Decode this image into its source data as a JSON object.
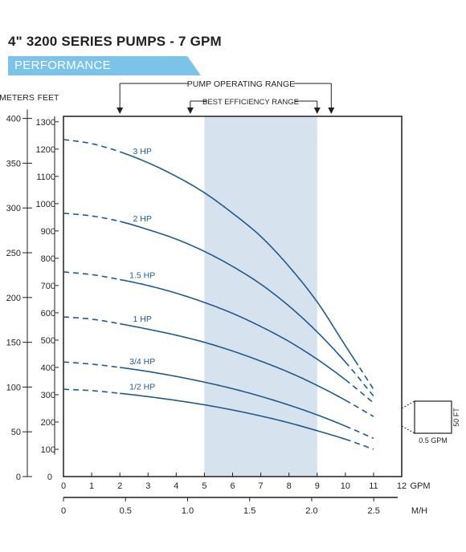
{
  "header": {
    "title": "4\" 3200 SERIES PUMPS - 7 GPM",
    "banner": "PERFORMANCE"
  },
  "chart_data": {
    "type": "line",
    "colors": {
      "curve": "#1f5a8f",
      "efficiency_band": "#d6e3ee",
      "banner": "#7cc3ea",
      "text": "#231f20"
    },
    "axes": {
      "meters_label": "METERS",
      "feet_label": "FEET",
      "gpm_label": "GPM",
      "mh_label": "M/H",
      "gpm_ticks": [
        0,
        1,
        2,
        3,
        4,
        5,
        6,
        7,
        8,
        9,
        10,
        11,
        12
      ],
      "mh_ticks": [
        "0",
        "0.5",
        "1.0",
        "1.5",
        "2.0",
        "2.5"
      ],
      "feet_ticks": [
        100,
        200,
        300,
        400,
        500,
        600,
        700,
        800,
        900,
        1000,
        1100,
        1200,
        1300
      ],
      "meters_ticks": [
        0,
        50,
        100,
        150,
        200,
        250,
        300,
        350,
        400
      ],
      "feet_zero": "0",
      "xlim_gpm": [
        0,
        12
      ],
      "ylim_feet": [
        0,
        1320
      ]
    },
    "ranges": {
      "pump_operating_label": "PUMP OPERATING RANGE",
      "pump_operating_gpm": [
        2,
        9.5
      ],
      "best_efficiency_label": "BEST EFFICIENCY RANGE",
      "best_efficiency_gpm": [
        4.5,
        9
      ],
      "shaded_band_gpm": [
        5,
        9
      ]
    },
    "scale_box": {
      "height_label": "50 FT",
      "width_label": "0.5 GPM"
    },
    "series": [
      {
        "name": "3 HP",
        "x": [
          0,
          1,
          2,
          3,
          4,
          5,
          6,
          7,
          8,
          9,
          10,
          11
        ],
        "y": [
          1235,
          1220,
          1190,
          1150,
          1100,
          1040,
          965,
          880,
          770,
          640,
          480,
          320
        ],
        "dashed_until": 2,
        "solid_until": 10.5
      },
      {
        "name": "2 HP",
        "x": [
          0,
          1,
          2,
          3,
          4,
          5,
          6,
          7,
          8,
          9,
          10,
          11
        ],
        "y": [
          965,
          955,
          935,
          905,
          870,
          825,
          770,
          705,
          625,
          530,
          420,
          295
        ],
        "dashed_until": 2,
        "solid_until": 10
      },
      {
        "name": "1.5 HP",
        "x": [
          0,
          1,
          2,
          3,
          4,
          5,
          6,
          7,
          8,
          9,
          10,
          11
        ],
        "y": [
          750,
          740,
          722,
          700,
          672,
          638,
          598,
          550,
          495,
          430,
          355,
          270
        ],
        "dashed_until": 2,
        "solid_until": 10
      },
      {
        "name": "1 HP",
        "x": [
          0,
          1,
          2,
          3,
          4,
          5,
          6,
          7,
          8,
          9,
          10,
          11
        ],
        "y": [
          585,
          577,
          560,
          540,
          518,
          492,
          460,
          423,
          382,
          334,
          280,
          220
        ],
        "dashed_until": 2,
        "solid_until": 10
      },
      {
        "name": "3/4 HP",
        "x": [
          0,
          1,
          2,
          3,
          4,
          5,
          6,
          7,
          8,
          9,
          10,
          11
        ],
        "y": [
          420,
          412,
          400,
          385,
          367,
          346,
          322,
          294,
          262,
          226,
          185,
          140
        ],
        "dashed_until": 2,
        "solid_until": 10
      },
      {
        "name": "1/2 HP",
        "x": [
          0,
          1,
          2,
          3,
          4,
          5,
          6,
          7,
          8,
          9,
          10,
          11
        ],
        "y": [
          320,
          315,
          305,
          293,
          279,
          263,
          244,
          222,
          197,
          168,
          137,
          100
        ],
        "dashed_until": 2,
        "solid_until": 10
      }
    ]
  }
}
